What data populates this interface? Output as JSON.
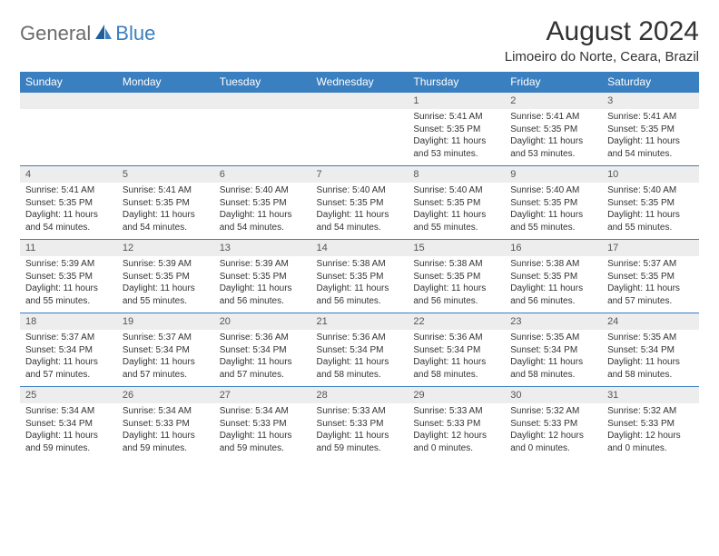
{
  "brand": {
    "general": "General",
    "blue": "Blue"
  },
  "title": "August 2024",
  "location": "Limoeiro do Norte, Ceara, Brazil",
  "colors": {
    "header_bg": "#3a7fbf",
    "numrow_bg": "#ededed",
    "border": "#3a7fbf",
    "text": "#333333",
    "logo_gray": "#6b6b6b",
    "logo_blue": "#3a7fbf"
  },
  "weekdays": [
    "Sunday",
    "Monday",
    "Tuesday",
    "Wednesday",
    "Thursday",
    "Friday",
    "Saturday"
  ],
  "weeks": [
    [
      null,
      null,
      null,
      null,
      {
        "n": "1",
        "sunrise": "5:41 AM",
        "sunset": "5:35 PM",
        "daylight": "11 hours and 53 minutes."
      },
      {
        "n": "2",
        "sunrise": "5:41 AM",
        "sunset": "5:35 PM",
        "daylight": "11 hours and 53 minutes."
      },
      {
        "n": "3",
        "sunrise": "5:41 AM",
        "sunset": "5:35 PM",
        "daylight": "11 hours and 54 minutes."
      }
    ],
    [
      {
        "n": "4",
        "sunrise": "5:41 AM",
        "sunset": "5:35 PM",
        "daylight": "11 hours and 54 minutes."
      },
      {
        "n": "5",
        "sunrise": "5:41 AM",
        "sunset": "5:35 PM",
        "daylight": "11 hours and 54 minutes."
      },
      {
        "n": "6",
        "sunrise": "5:40 AM",
        "sunset": "5:35 PM",
        "daylight": "11 hours and 54 minutes."
      },
      {
        "n": "7",
        "sunrise": "5:40 AM",
        "sunset": "5:35 PM",
        "daylight": "11 hours and 54 minutes."
      },
      {
        "n": "8",
        "sunrise": "5:40 AM",
        "sunset": "5:35 PM",
        "daylight": "11 hours and 55 minutes."
      },
      {
        "n": "9",
        "sunrise": "5:40 AM",
        "sunset": "5:35 PM",
        "daylight": "11 hours and 55 minutes."
      },
      {
        "n": "10",
        "sunrise": "5:40 AM",
        "sunset": "5:35 PM",
        "daylight": "11 hours and 55 minutes."
      }
    ],
    [
      {
        "n": "11",
        "sunrise": "5:39 AM",
        "sunset": "5:35 PM",
        "daylight": "11 hours and 55 minutes."
      },
      {
        "n": "12",
        "sunrise": "5:39 AM",
        "sunset": "5:35 PM",
        "daylight": "11 hours and 55 minutes."
      },
      {
        "n": "13",
        "sunrise": "5:39 AM",
        "sunset": "5:35 PM",
        "daylight": "11 hours and 56 minutes."
      },
      {
        "n": "14",
        "sunrise": "5:38 AM",
        "sunset": "5:35 PM",
        "daylight": "11 hours and 56 minutes."
      },
      {
        "n": "15",
        "sunrise": "5:38 AM",
        "sunset": "5:35 PM",
        "daylight": "11 hours and 56 minutes."
      },
      {
        "n": "16",
        "sunrise": "5:38 AM",
        "sunset": "5:35 PM",
        "daylight": "11 hours and 56 minutes."
      },
      {
        "n": "17",
        "sunrise": "5:37 AM",
        "sunset": "5:35 PM",
        "daylight": "11 hours and 57 minutes."
      }
    ],
    [
      {
        "n": "18",
        "sunrise": "5:37 AM",
        "sunset": "5:34 PM",
        "daylight": "11 hours and 57 minutes."
      },
      {
        "n": "19",
        "sunrise": "5:37 AM",
        "sunset": "5:34 PM",
        "daylight": "11 hours and 57 minutes."
      },
      {
        "n": "20",
        "sunrise": "5:36 AM",
        "sunset": "5:34 PM",
        "daylight": "11 hours and 57 minutes."
      },
      {
        "n": "21",
        "sunrise": "5:36 AM",
        "sunset": "5:34 PM",
        "daylight": "11 hours and 58 minutes."
      },
      {
        "n": "22",
        "sunrise": "5:36 AM",
        "sunset": "5:34 PM",
        "daylight": "11 hours and 58 minutes."
      },
      {
        "n": "23",
        "sunrise": "5:35 AM",
        "sunset": "5:34 PM",
        "daylight": "11 hours and 58 minutes."
      },
      {
        "n": "24",
        "sunrise": "5:35 AM",
        "sunset": "5:34 PM",
        "daylight": "11 hours and 58 minutes."
      }
    ],
    [
      {
        "n": "25",
        "sunrise": "5:34 AM",
        "sunset": "5:34 PM",
        "daylight": "11 hours and 59 minutes."
      },
      {
        "n": "26",
        "sunrise": "5:34 AM",
        "sunset": "5:33 PM",
        "daylight": "11 hours and 59 minutes."
      },
      {
        "n": "27",
        "sunrise": "5:34 AM",
        "sunset": "5:33 PM",
        "daylight": "11 hours and 59 minutes."
      },
      {
        "n": "28",
        "sunrise": "5:33 AM",
        "sunset": "5:33 PM",
        "daylight": "11 hours and 59 minutes."
      },
      {
        "n": "29",
        "sunrise": "5:33 AM",
        "sunset": "5:33 PM",
        "daylight": "12 hours and 0 minutes."
      },
      {
        "n": "30",
        "sunrise": "5:32 AM",
        "sunset": "5:33 PM",
        "daylight": "12 hours and 0 minutes."
      },
      {
        "n": "31",
        "sunrise": "5:32 AM",
        "sunset": "5:33 PM",
        "daylight": "12 hours and 0 minutes."
      }
    ]
  ],
  "labels": {
    "sunrise": "Sunrise: ",
    "sunset": "Sunset: ",
    "daylight": "Daylight: "
  }
}
